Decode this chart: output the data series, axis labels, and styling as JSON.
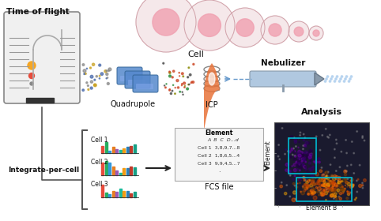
{
  "title": "",
  "bg_color": "#ffffff",
  "labels": {
    "time_of_flight": "Time of flight",
    "cell": "Cell",
    "nebulizer": "Nebulizer",
    "quadrupole": "Quadrupole",
    "icp": "ICP",
    "integrate_per_cell": "Integrate-per-cell",
    "fcs_file": "FCS file",
    "analysis": "Analysis",
    "element_x": "Element B",
    "element_y": "Element",
    "cell1": "Cell 1",
    "cell2": "Cell 2",
    "cell3": "Cell 3",
    "table_header": "Element",
    "table_ab": "A  B  C  D...d",
    "table_row1": "Cell 1  3,8,9,7...8",
    "table_row2": "Cell 2  1,8,6,5...4",
    "table_row3": "Cell 3  9,9,4,5...7",
    "table_dots": "."
  },
  "colors": {
    "tof_border": "#888888",
    "tof_fill": "#f0f0f0",
    "tof_curve": "#aaaaaa",
    "dot_orange": "#f5a623",
    "dot_red": "#e74c3c",
    "quadrupole_blue": "#4a7cbf",
    "icp_orange": "#e8733a",
    "nebulizer_blue": "#b0c8e0",
    "cell_pink": "#f0a0b0",
    "cell_fill": "#f5e8ea",
    "arrow_color": "#222222",
    "bar_colors": [
      "#e74c3c",
      "#27ae60",
      "#3498db",
      "#e67e22",
      "#9b59b6",
      "#1abc9c",
      "#f39c12",
      "#2980b9",
      "#c0392b",
      "#16a085"
    ],
    "gate_cyan": "#00bcd4",
    "heat_orange": "#e67e22",
    "bracket_color": "#555555",
    "table_bg": "#f8f8f8",
    "text_color": "#111111"
  },
  "figsize": [
    4.82,
    2.8
  ],
  "dpi": 100
}
